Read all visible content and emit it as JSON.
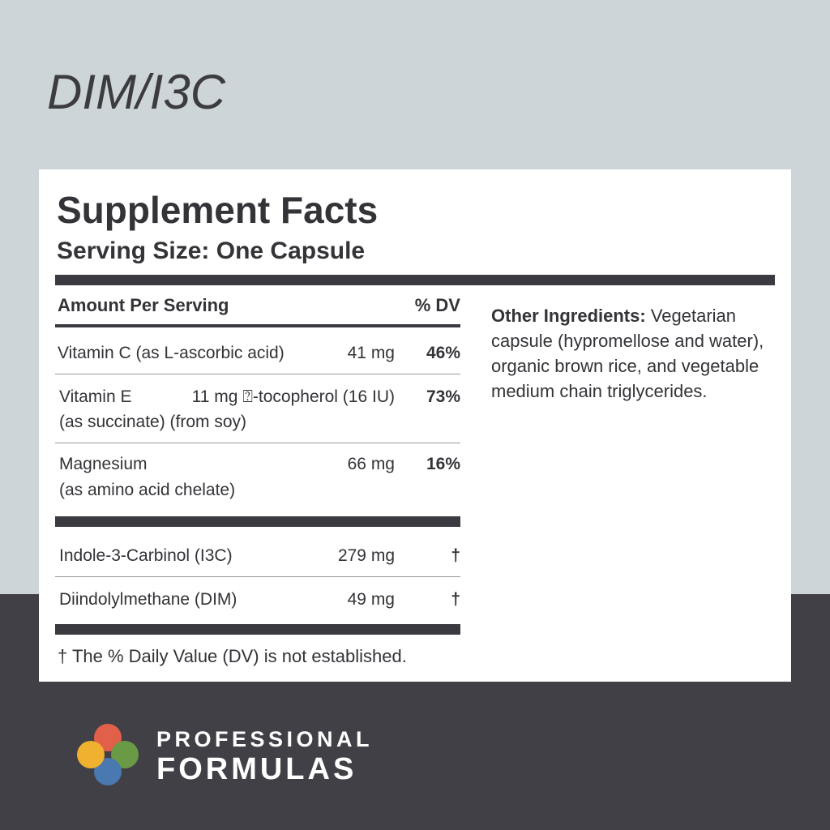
{
  "header": {
    "title": "DIM/I3C"
  },
  "facts": {
    "title": "Supplement Facts",
    "serving_size": "Serving Size: One Capsule",
    "column_headers": [
      "Amount Per Serving",
      "% DV"
    ],
    "rows": [
      {
        "name": [
          "Vitamin C (as L-ascorbic acid)"
        ],
        "amount": "41 mg",
        "dv": "46%"
      },
      {
        "name": [
          "Vitamin E",
          "(as succinate) (from soy)"
        ],
        "amount": "11 mg ⍰-tocopherol (16 IU)",
        "dv": "73%"
      },
      {
        "name": [
          "Magnesium",
          "(as amino acid chelate)"
        ],
        "amount": "66 mg",
        "dv": "16%"
      },
      {
        "name": [
          "Indole-3-Carbinol (I3C)"
        ],
        "amount": "279 mg",
        "dv": "†"
      },
      {
        "name": [
          "Diindolylmethane (DIM)"
        ],
        "amount": "49 mg",
        "dv": "†"
      }
    ],
    "footnote": "† The % Daily Value (DV) is not established."
  },
  "other_ingredients": {
    "label": "Other Ingredients:",
    "text": "Vegetarian capsule (hypromellose and water), organic brown rice, and vegetable medium chain triglycerides."
  },
  "brand": {
    "line1": "PROFESSIONAL",
    "line2": "FORMULAS"
  }
}
